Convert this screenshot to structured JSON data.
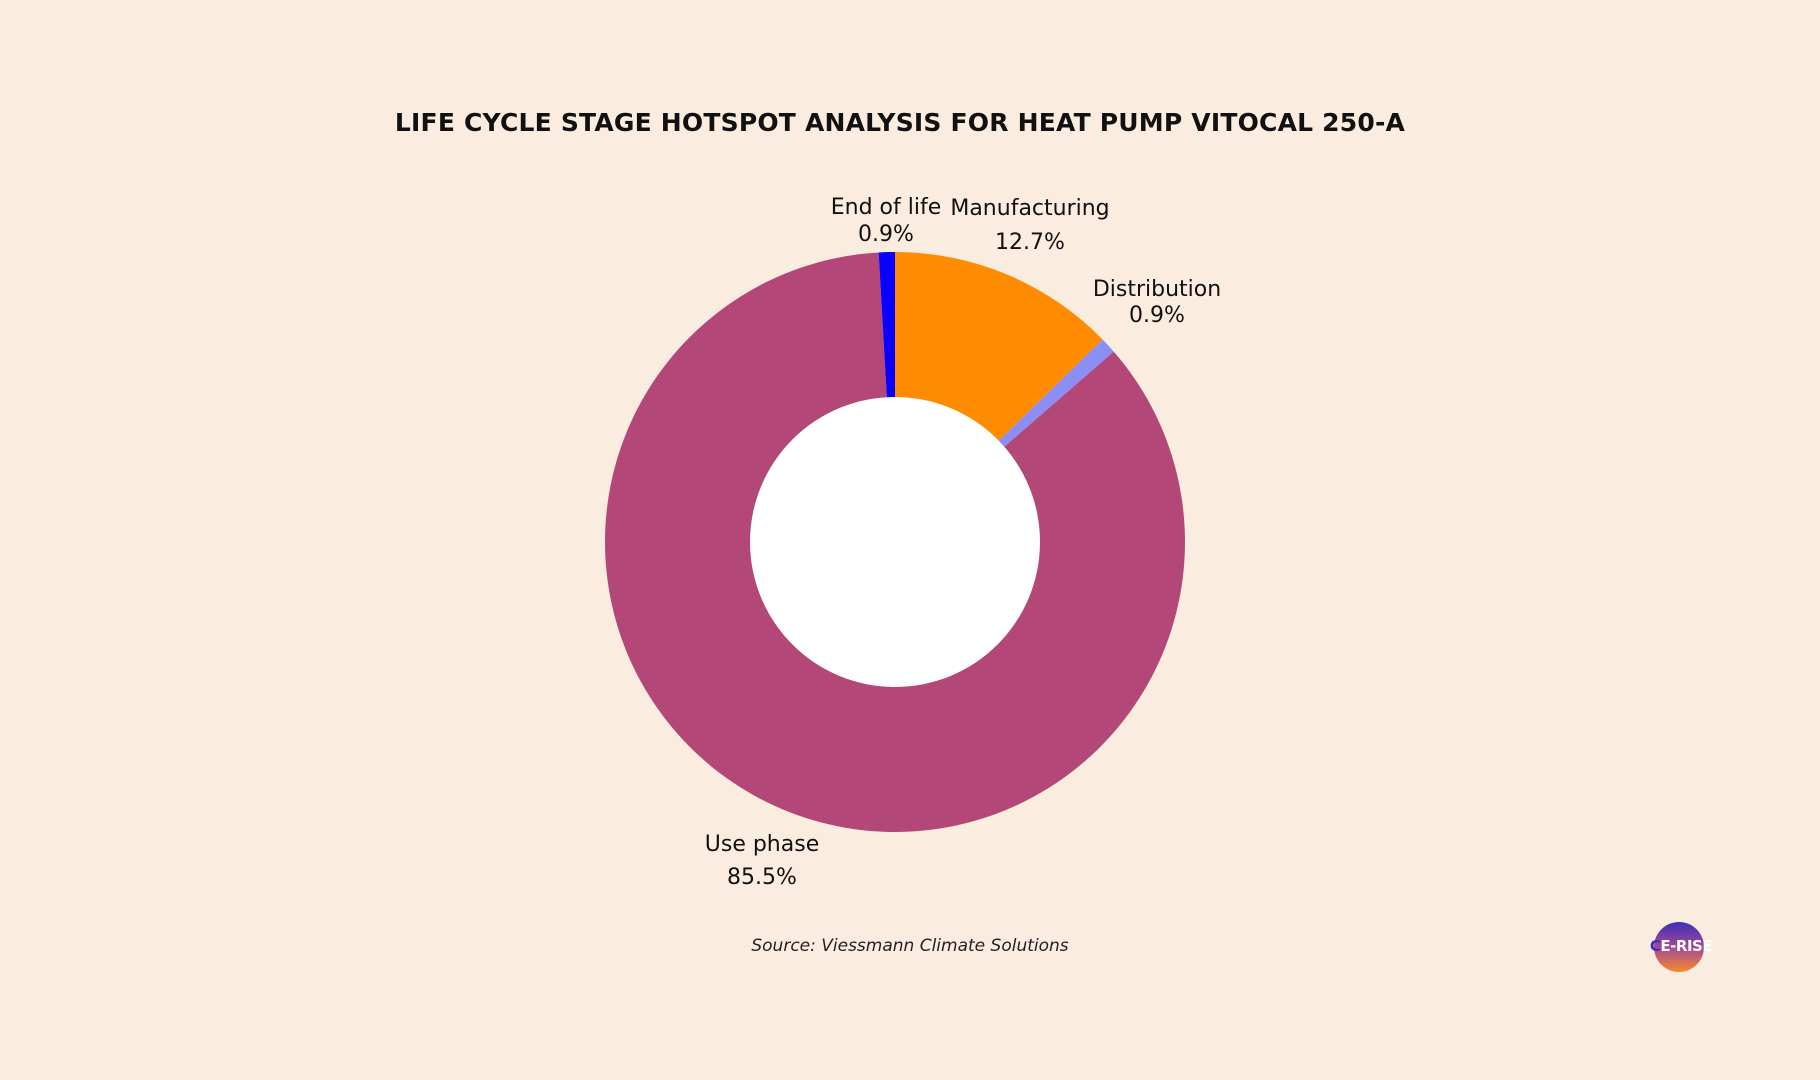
{
  "title": "LIFE CYCLE STAGE HOTSPOT ANALYSIS FOR HEAT PUMP VITOCAL 250-A",
  "source": "Source: Viessmann Climate Solutions",
  "logo": {
    "text_lead": "C",
    "text_rest": "E-RISE"
  },
  "colors": {
    "background": "#fbece0",
    "hole": "#ffffff"
  },
  "chart_data": {
    "type": "pie",
    "donut": true,
    "start_angle_deg": 0,
    "direction": "clockwise",
    "slices": [
      {
        "label": "Manufacturing",
        "value_label": "12.7%",
        "value": 12.7,
        "color": "#ff8c00"
      },
      {
        "label": "Distribution",
        "value_label": "0.9%",
        "value": 0.9,
        "color": "#8b8ef5"
      },
      {
        "label": "Use phase",
        "value_label": "85.5%",
        "value": 85.5,
        "color": "#b34878"
      },
      {
        "label": "End of life",
        "value_label": "0.9%",
        "value": 0.9,
        "color": "#0a00ff"
      }
    ]
  }
}
